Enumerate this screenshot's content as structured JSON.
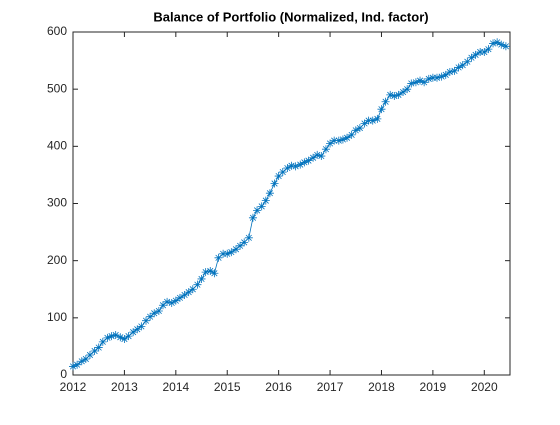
{
  "chart_data": {
    "type": "line",
    "title": "Balance of Portfolio (Normalized, Ind. factor)",
    "x": [
      2012.0,
      2012.08,
      2012.17,
      2012.25,
      2012.33,
      2012.42,
      2012.5,
      2012.58,
      2012.67,
      2012.75,
      2012.83,
      2012.92,
      2013.0,
      2013.08,
      2013.17,
      2013.25,
      2013.33,
      2013.42,
      2013.5,
      2013.58,
      2013.67,
      2013.75,
      2013.83,
      2013.92,
      2014.0,
      2014.08,
      2014.17,
      2014.25,
      2014.33,
      2014.42,
      2014.5,
      2014.58,
      2014.67,
      2014.75,
      2014.83,
      2014.92,
      2015.0,
      2015.08,
      2015.17,
      2015.25,
      2015.33,
      2015.42,
      2015.5,
      2015.58,
      2015.67,
      2015.75,
      2015.83,
      2015.92,
      2016.0,
      2016.08,
      2016.17,
      2016.25,
      2016.33,
      2016.42,
      2016.5,
      2016.58,
      2016.67,
      2016.75,
      2016.83,
      2016.92,
      2017.0,
      2017.08,
      2017.17,
      2017.25,
      2017.33,
      2017.42,
      2017.5,
      2017.58,
      2017.67,
      2017.75,
      2017.83,
      2017.92,
      2018.0,
      2018.08,
      2018.17,
      2018.25,
      2018.33,
      2018.42,
      2018.5,
      2018.58,
      2018.67,
      2018.75,
      2018.83,
      2018.92,
      2019.0,
      2019.08,
      2019.17,
      2019.25,
      2019.33,
      2019.42,
      2019.5,
      2019.58,
      2019.67,
      2019.75,
      2019.83,
      2019.92,
      2020.0,
      2020.08,
      2020.17,
      2020.25,
      2020.33,
      2020.42
    ],
    "series": [
      {
        "color": "#0072bd",
        "values": [
          15,
          18,
          24,
          28,
          35,
          42,
          48,
          58,
          65,
          68,
          70,
          66,
          63,
          68,
          75,
          80,
          85,
          95,
          102,
          108,
          112,
          122,
          128,
          126,
          130,
          135,
          140,
          145,
          150,
          158,
          168,
          180,
          182,
          178,
          205,
          212,
          212,
          215,
          220,
          226,
          232,
          240,
          275,
          288,
          295,
          305,
          318,
          335,
          348,
          355,
          362,
          366,
          365,
          368,
          372,
          375,
          380,
          385,
          383,
          395,
          405,
          410,
          410,
          412,
          415,
          420,
          428,
          432,
          440,
          445,
          445,
          448,
          465,
          478,
          490,
          488,
          490,
          495,
          500,
          510,
          512,
          515,
          512,
          518,
          520,
          520,
          522,
          525,
          530,
          532,
          538,
          542,
          548,
          555,
          560,
          565,
          565,
          570,
          580,
          582,
          578,
          575
        ]
      }
    ],
    "xlim": [
      2012,
      2020.5
    ],
    "xticks": [
      2012,
      2013,
      2014,
      2015,
      2016,
      2017,
      2018,
      2019,
      2020
    ],
    "ylim": [
      0,
      600
    ],
    "yticks": [
      0,
      100,
      200,
      300,
      400,
      500,
      600
    ],
    "grid": false
  }
}
